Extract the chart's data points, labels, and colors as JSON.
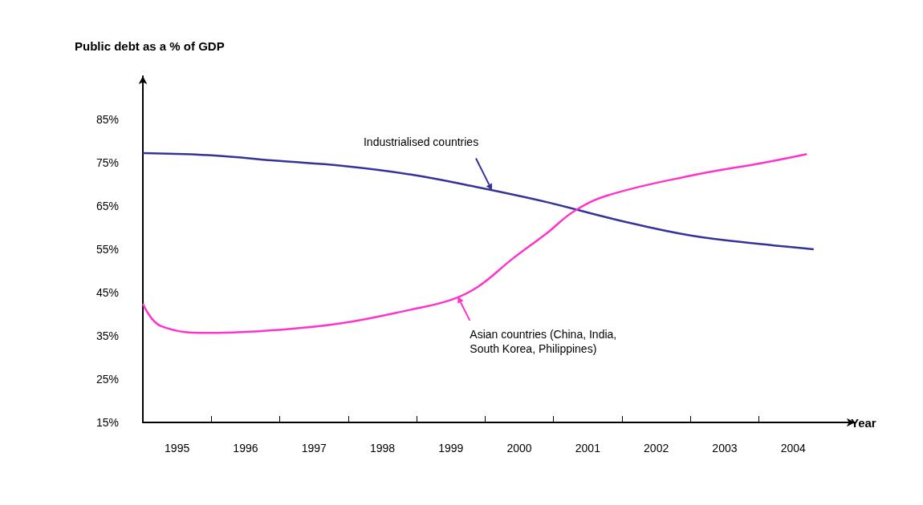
{
  "chart_data": {
    "type": "line",
    "ylabel": "Public debt as a % of GDP",
    "xlabel": "Year",
    "xlim": [
      1994.5,
      2004.9
    ],
    "ylim": [
      15,
      95
    ],
    "xticks": [
      {
        "value": 1995,
        "label": "1995"
      },
      {
        "value": 1996,
        "label": "1996"
      },
      {
        "value": 1997,
        "label": "1997"
      },
      {
        "value": 1998,
        "label": "1998"
      },
      {
        "value": 1999,
        "label": "1999"
      },
      {
        "value": 2000,
        "label": "2000"
      },
      {
        "value": 2001,
        "label": "2001"
      },
      {
        "value": 2002,
        "label": "2002"
      },
      {
        "value": 2003,
        "label": "2003"
      },
      {
        "value": 2004,
        "label": "2004"
      },
      {
        "value": 1995.5,
        "label": null
      },
      {
        "value": 1996.5,
        "label": null
      },
      {
        "value": 1997.5,
        "label": null
      },
      {
        "value": 1998.5,
        "label": null
      },
      {
        "value": 1999.5,
        "label": null
      },
      {
        "value": 2000.5,
        "label": null
      },
      {
        "value": 2001.5,
        "label": null
      },
      {
        "value": 2002.5,
        "label": null
      },
      {
        "value": 2003.5,
        "label": null
      }
    ],
    "yticks": [
      {
        "value": 15,
        "label": "15%"
      },
      {
        "value": 25,
        "label": "25%"
      },
      {
        "value": 35,
        "label": "35%"
      },
      {
        "value": 45,
        "label": "45%"
      },
      {
        "value": 55,
        "label": "55%"
      },
      {
        "value": 65,
        "label": "65%"
      },
      {
        "value": 75,
        "label": "75%"
      },
      {
        "value": 85,
        "label": "85%"
      }
    ],
    "grid": false,
    "series": [
      {
        "color": "#333399",
        "x": [
          1994.5,
          1995.5,
          1996.5,
          1997.4,
          1998.4,
          1999.4,
          2000.4,
          2001.4,
          2002.5,
          2003.6,
          2004.3
        ],
        "values": [
          77.2,
          76.7,
          75.4,
          74.3,
          72.3,
          69.3,
          65.9,
          61.9,
          58.2,
          56.1,
          55
        ]
      },
      {
        "color": "#ff33cc",
        "x": [
          1994.5,
          1994.76,
          1995.5,
          1996.5,
          1997.4,
          1998.4,
          1999,
          1999.4,
          1999.9,
          2000.4,
          2000.8,
          2001.3,
          2002.5,
          2003.6,
          2004.2
        ],
        "values": [
          42.4,
          37.3,
          35.7,
          36.4,
          37.9,
          41,
          43.3,
          46.4,
          52.8,
          58.7,
          63.8,
          67.5,
          72,
          75.1,
          77
        ]
      }
    ],
    "annotations": [
      {
        "text": "Industrialised countries",
        "x": 1999.6,
        "y": 68.6
      },
      {
        "text": "Asian countries (China, India,\nSouth Korea, Philippines)",
        "x": 1999.1,
        "y": 44.1
      }
    ]
  }
}
